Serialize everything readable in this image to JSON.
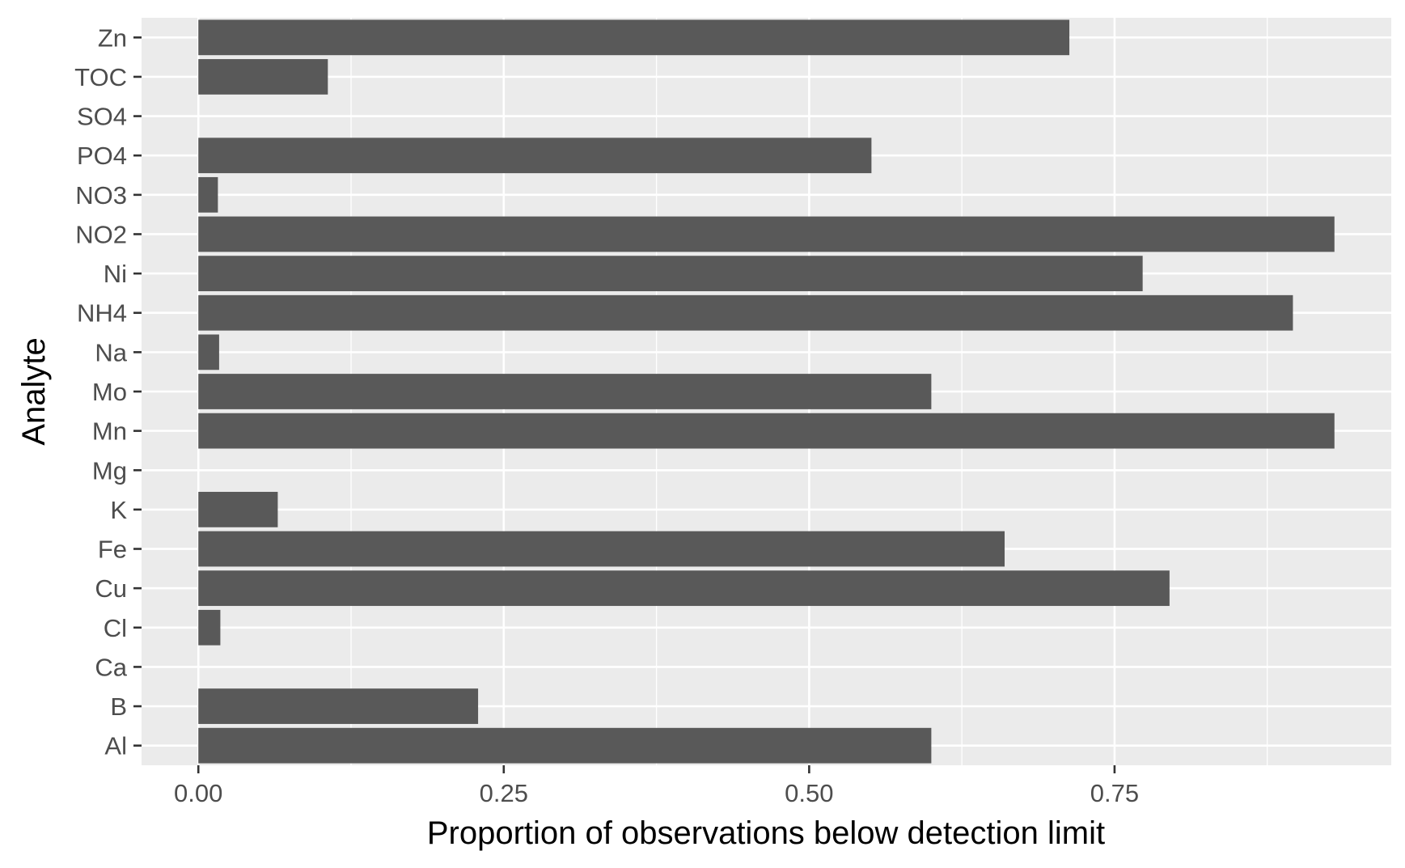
{
  "chart_data": {
    "type": "bar",
    "orientation": "horizontal",
    "title": "",
    "xlabel": "Proportion of observations below detection limit",
    "ylabel": "Analyte",
    "categories": [
      "Al",
      "B",
      "Ca",
      "Cl",
      "Cu",
      "Fe",
      "K",
      "Mg",
      "Mn",
      "Mo",
      "Na",
      "NH4",
      "Ni",
      "NO2",
      "NO3",
      "PO4",
      "SO4",
      "TOC",
      "Zn"
    ],
    "values": [
      0.6,
      0.229,
      0,
      0.018,
      0.795,
      0.66,
      0.065,
      0,
      0.93,
      0.6,
      0.017,
      0.896,
      0.773,
      0.93,
      0.016,
      0.551,
      0,
      0.106,
      0.713
    ],
    "xticks": [
      0,
      0.25,
      0.5,
      0.75
    ],
    "xtick_labels": [
      "0.00",
      "0.25",
      "0.50",
      "0.75"
    ],
    "xlim": [
      -0.0465,
      0.9765
    ],
    "grid": true,
    "legend": "none",
    "colors": {
      "bar": "#595959",
      "panel": "#ebebeb",
      "grid": "#ffffff"
    }
  }
}
